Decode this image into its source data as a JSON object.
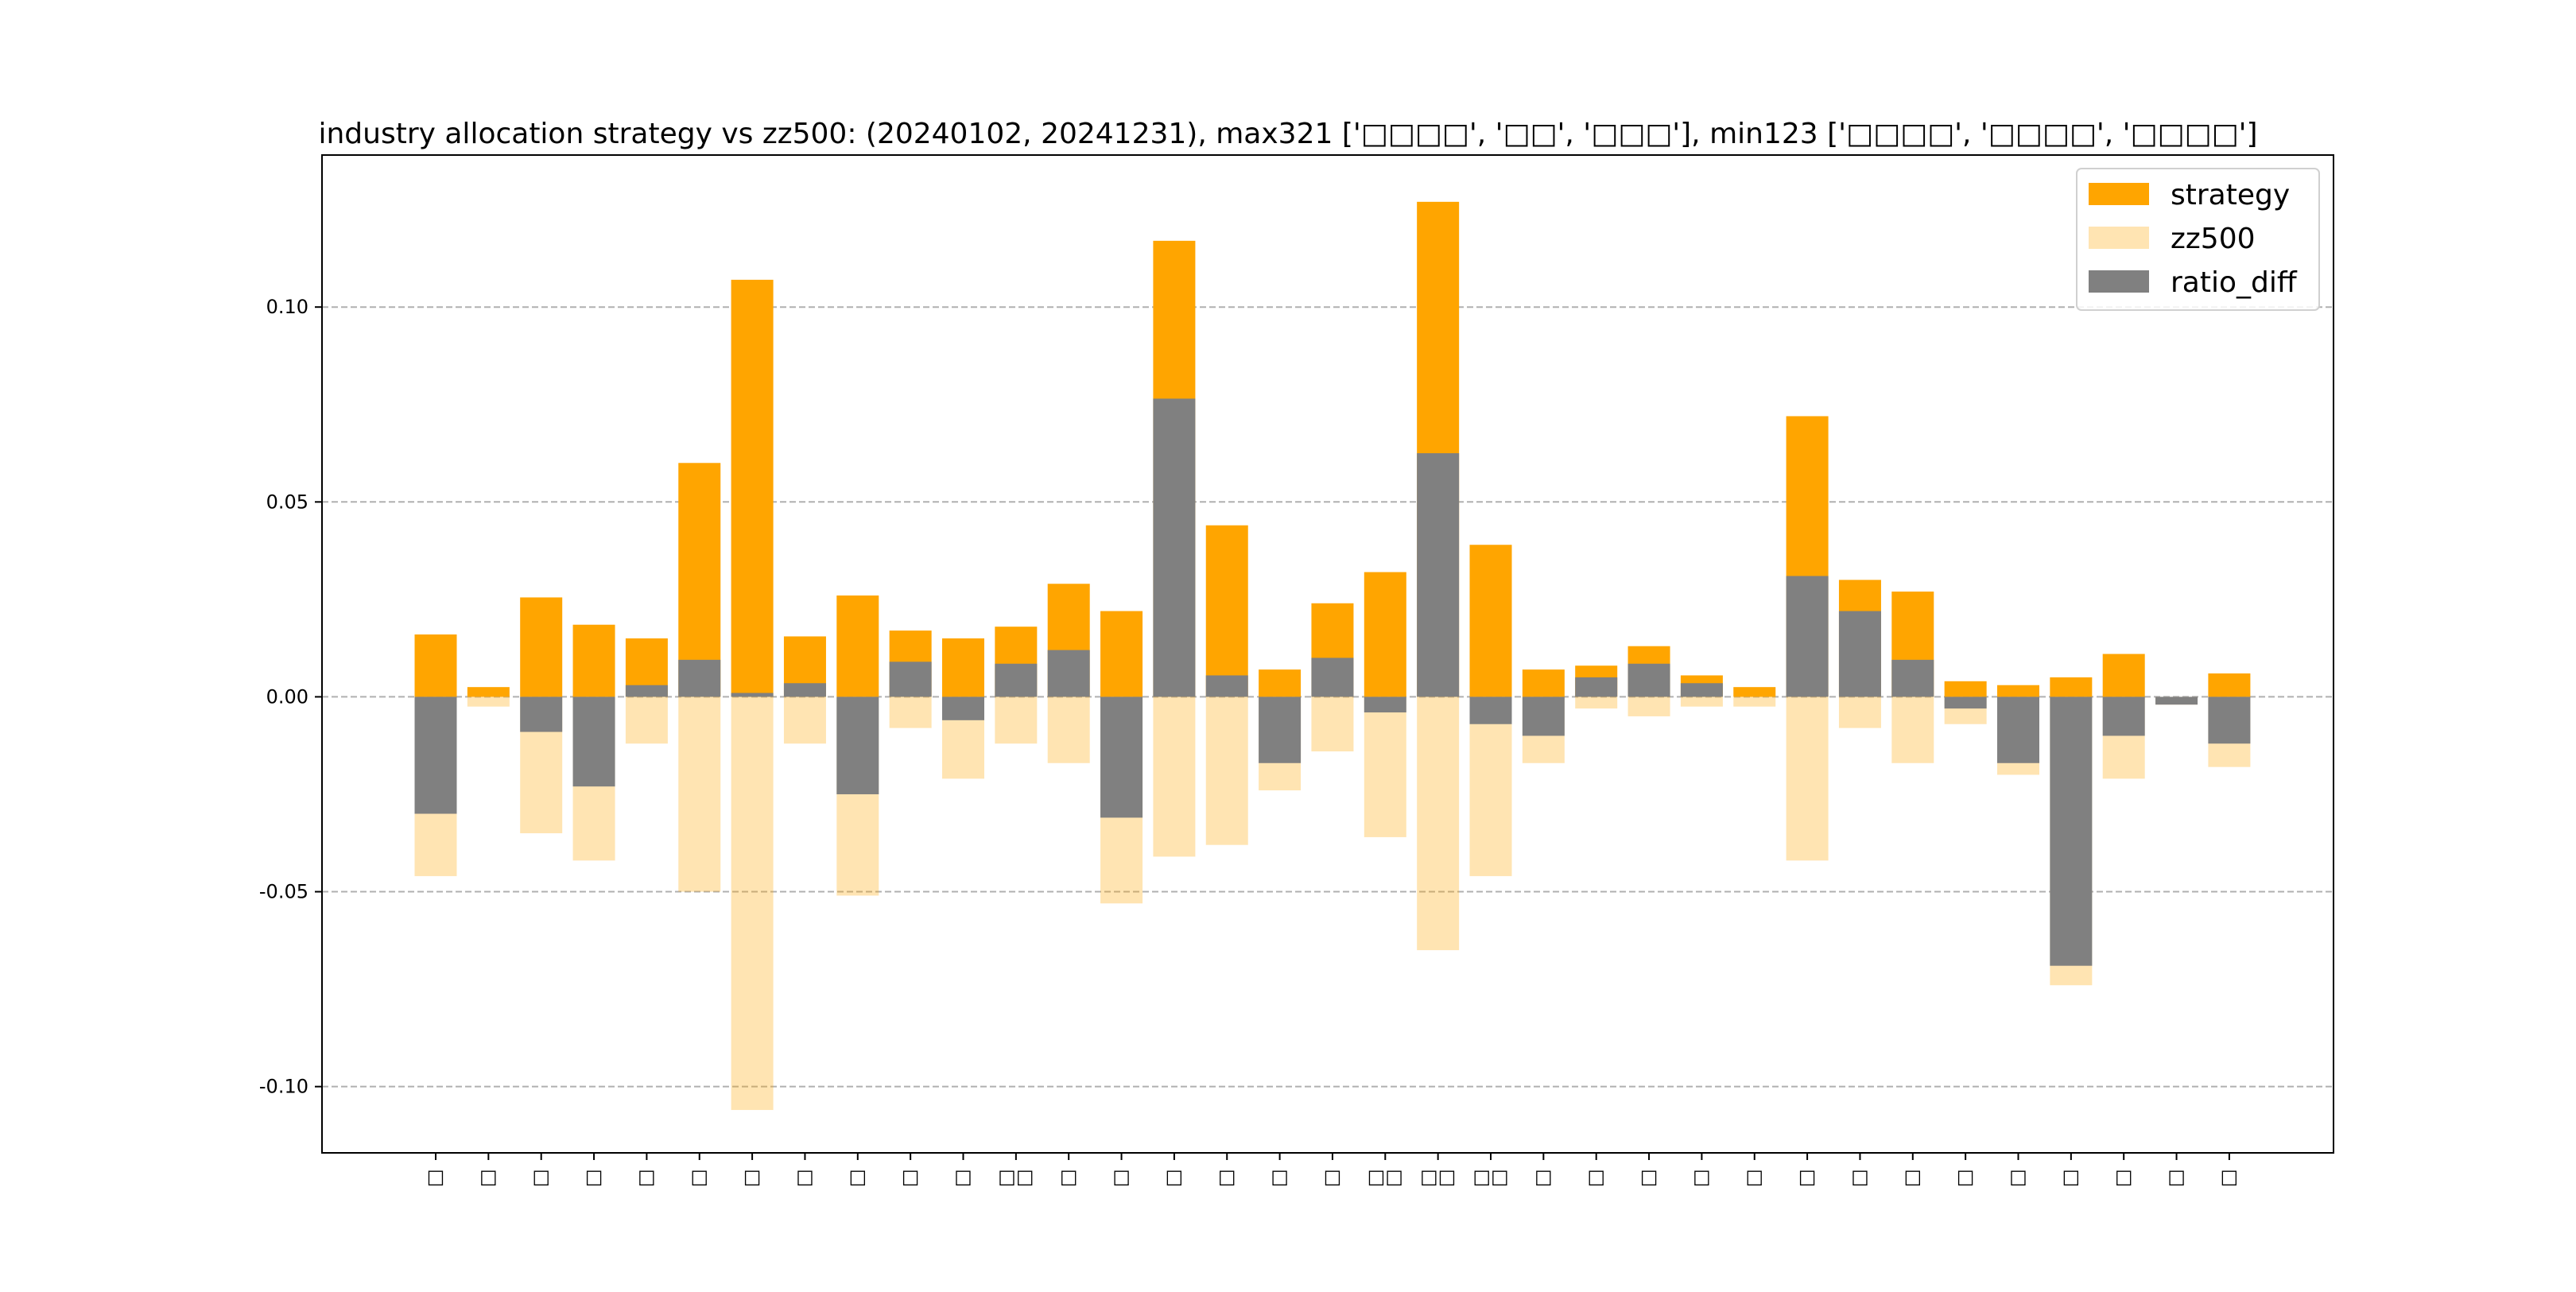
{
  "chart_data": {
    "type": "bar",
    "title": "industry allocation strategy vs zz500: (20240102, 20241231), max321 ['□□□□', '□□', '□□□'], min123 ['□□□□', '□□□□', '□□□□']",
    "xlabel": "",
    "ylabel": "",
    "ylim": [
      -0.117,
      0.139
    ],
    "yticks": [
      0.1,
      0.05,
      0.0,
      -0.05,
      -0.1
    ],
    "ytick_labels": [
      "0.10",
      "0.05",
      "0.00",
      "-0.05",
      "-0.10"
    ],
    "grid": "horizontal dashed",
    "legend_position": "top-right",
    "categories": [
      "□",
      "□",
      "□",
      "□",
      "□",
      "□",
      "□",
      "□",
      "□",
      "□",
      "□",
      "□□",
      "□",
      "□",
      "□",
      "□",
      "□",
      "□",
      "□□",
      "□□",
      "□□",
      "□",
      "□",
      "□",
      "□",
      "□",
      "□",
      "□",
      "□",
      "□",
      "□",
      "□",
      "□",
      "□",
      "□"
    ],
    "series": [
      {
        "name": "strategy",
        "color": "#ffa500",
        "alpha": 1.0,
        "values": [
          0.016,
          0.0025,
          0.0255,
          0.0185,
          0.015,
          0.06,
          0.107,
          0.0155,
          0.026,
          0.017,
          0.015,
          0.018,
          0.029,
          0.022,
          0.117,
          0.044,
          0.007,
          0.024,
          0.032,
          0.127,
          0.039,
          0.007,
          0.008,
          0.013,
          0.0055,
          0.0025,
          0.072,
          0.03,
          0.027,
          0.004,
          0.003,
          0.005,
          0.011,
          0.0,
          0.006
        ]
      },
      {
        "name": "zz500",
        "color": "#ffa500",
        "alpha": 0.3,
        "values": [
          -0.046,
          -0.0025,
          -0.035,
          -0.042,
          -0.012,
          -0.05,
          -0.106,
          -0.012,
          -0.051,
          -0.008,
          -0.021,
          -0.012,
          -0.017,
          -0.053,
          -0.041,
          -0.038,
          -0.024,
          -0.014,
          -0.036,
          -0.065,
          -0.046,
          -0.017,
          -0.003,
          -0.005,
          -0.0025,
          -0.0025,
          -0.042,
          -0.008,
          -0.017,
          -0.007,
          -0.02,
          -0.074,
          -0.021,
          -0.002,
          -0.018
        ]
      },
      {
        "name": "ratio_diff",
        "color": "#808080",
        "alpha": 1.0,
        "values": [
          -0.03,
          0.0,
          -0.009,
          -0.023,
          0.003,
          0.0095,
          0.001,
          0.0035,
          -0.025,
          0.009,
          -0.006,
          0.0085,
          0.012,
          -0.031,
          0.0765,
          0.0055,
          -0.017,
          0.01,
          -0.004,
          0.0625,
          -0.007,
          -0.01,
          0.005,
          0.0085,
          0.0035,
          0.0,
          0.031,
          0.022,
          0.0095,
          -0.003,
          -0.017,
          -0.069,
          -0.01,
          -0.002,
          -0.012
        ]
      }
    ]
  }
}
